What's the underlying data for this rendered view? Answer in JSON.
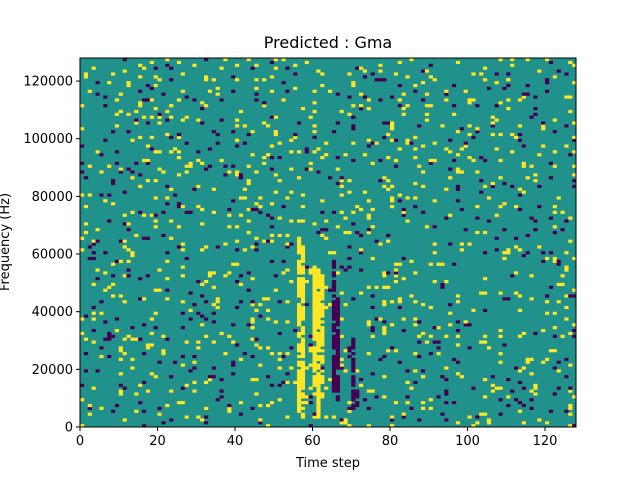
{
  "chart_data": {
    "type": "heatmap",
    "title": "Predicted : Gma",
    "xlabel": "Time step",
    "ylabel": "Frequency (Hz)",
    "xlim": [
      0,
      128
    ],
    "ylim": [
      0,
      128000
    ],
    "grid": false,
    "x_ticks": [
      0,
      20,
      40,
      60,
      80,
      100,
      120
    ],
    "y_ticks": [
      0,
      20000,
      40000,
      60000,
      80000,
      100000,
      120000
    ],
    "x_tick_labels": [
      "0",
      "20",
      "40",
      "60",
      "80",
      "100",
      "120"
    ],
    "y_tick_labels": [
      "0",
      "20000",
      "40000",
      "60000",
      "80000",
      "100000",
      "120000"
    ],
    "n_time_steps": 128,
    "n_freq_bins": 128,
    "colors": {
      "background": "#21918c",
      "high": "#fde725",
      "low": "#440154"
    },
    "approx_high_fraction": 0.045,
    "approx_low_fraction": 0.03,
    "cell_values_note_skip": true,
    "dense_columns": [
      {
        "time_step": 56,
        "value": "high",
        "freq_range": [
          5000,
          65000
        ]
      },
      {
        "time_step": 57,
        "value": "high",
        "freq_range": [
          3000,
          62000
        ]
      },
      {
        "time_step": 60,
        "value": "high",
        "freq_range": [
          10000,
          55000
        ]
      },
      {
        "time_step": 61,
        "value": "high",
        "freq_range": [
          2000,
          55000
        ]
      },
      {
        "time_step": 62,
        "value": "high",
        "freq_range": [
          10000,
          52000
        ]
      },
      {
        "time_step": 65,
        "value": "low",
        "freq_range": [
          12000,
          58000
        ]
      },
      {
        "time_step": 66,
        "value": "low",
        "freq_range": [
          8000,
          45000
        ]
      },
      {
        "time_step": 70,
        "value": "low",
        "freq_range": [
          6000,
          30000
        ]
      },
      {
        "time_step": 71,
        "value": "low",
        "freq_range": [
          7000,
          12000
        ]
      }
    ]
  }
}
